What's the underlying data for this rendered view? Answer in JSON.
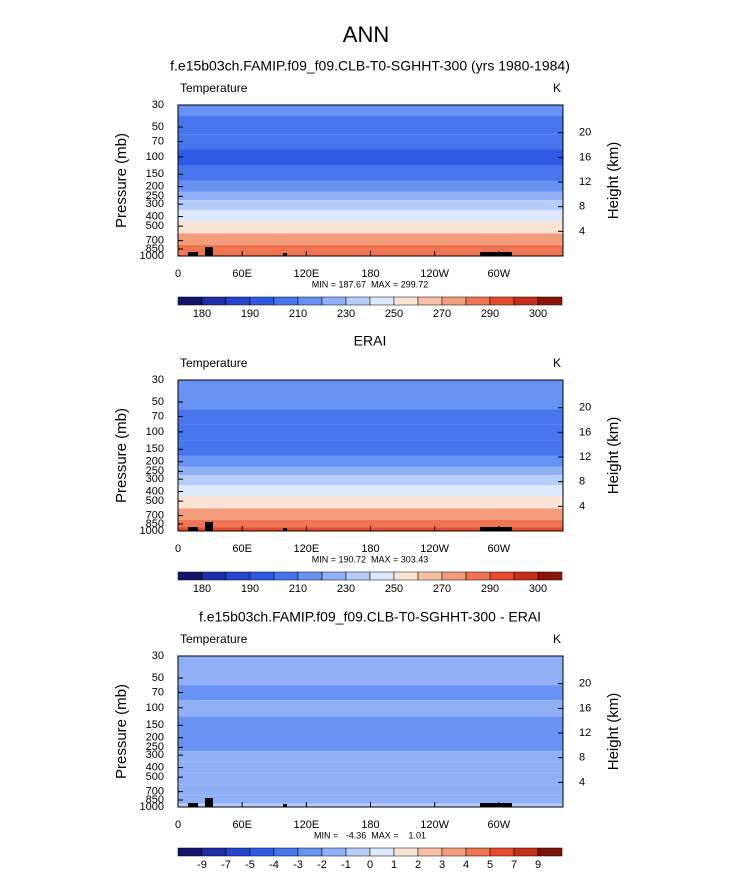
{
  "title": "ANN",
  "chart_data": [
    {
      "type": "contour",
      "title": "f.e15b03ch.FAMIP.f09_f09.CLB-T0-SGHHT-300 (yrs 1980-1984)",
      "subtitle": "Temperature",
      "units": "K",
      "ylabel": "Pressure (mb)",
      "y2label": "Height (km)",
      "stats": "MIN = 187.67  MAX = 299.72",
      "ylim": [
        1000,
        30
      ],
      "log_y": true,
      "yticks": [
        30,
        50,
        70,
        100,
        150,
        200,
        250,
        300,
        400,
        500,
        700,
        850,
        1000
      ],
      "y2lim": [
        0,
        24.5
      ],
      "y2ticks": [
        4,
        8,
        12,
        16,
        20
      ],
      "xlim": [
        0,
        360
      ],
      "xticks": [
        0,
        {
          "value": 60,
          "label": "60E"
        },
        {
          "value": 120,
          "label": "120E"
        },
        180,
        {
          "value": 240,
          "label": "120W"
        },
        {
          "value": 300,
          "label": "60W"
        }
      ],
      "y": [
        30,
        50,
        70,
        100,
        150,
        200,
        250,
        300,
        400,
        500,
        700,
        850,
        1000
      ],
      "values": [
        214,
        208,
        203,
        198,
        204,
        212,
        222,
        232,
        246,
        256,
        270,
        280,
        288
      ],
      "colorbar": {
        "labels": [
          180,
          null,
          190,
          null,
          210,
          null,
          230,
          null,
          250,
          null,
          270,
          null,
          290,
          null,
          300
        ],
        "colors": [
          "#14146e",
          "#1e2ea8",
          "#2646d0",
          "#2f5ae6",
          "#4675ee",
          "#6791f2",
          "#8fb0f6",
          "#b7cdf9",
          "#dde8fb",
          "#f9e3d4",
          "#f6c0a4",
          "#f29c7c",
          "#ee7452",
          "#e64c2a",
          "#c4301a",
          "#8c160c"
        ]
      }
    },
    {
      "type": "contour",
      "title": "ERAI",
      "subtitle": "Temperature",
      "units": "K",
      "ylabel": "Pressure (mb)",
      "y2label": "Height (km)",
      "stats": "MIN = 190.72  MAX = 303.43",
      "ylim": [
        1000,
        30
      ],
      "log_y": true,
      "yticks": [
        30,
        50,
        70,
        100,
        150,
        200,
        250,
        300,
        400,
        500,
        700,
        850,
        1000
      ],
      "y2lim": [
        0,
        24.5
      ],
      "y2ticks": [
        4,
        8,
        12,
        16,
        20
      ],
      "xlim": [
        0,
        360
      ],
      "xticks": [
        0,
        {
          "value": 60,
          "label": "60E"
        },
        {
          "value": 120,
          "label": "120E"
        },
        180,
        {
          "value": 240,
          "label": "120W"
        },
        {
          "value": 300,
          "label": "60W"
        }
      ],
      "y": [
        30,
        50,
        70,
        100,
        150,
        200,
        250,
        300,
        400,
        500,
        700,
        850,
        1000
      ],
      "values": [
        216,
        210,
        206,
        200,
        206,
        214,
        224,
        234,
        248,
        258,
        272,
        282,
        290
      ],
      "colorbar": {
        "labels": [
          180,
          null,
          190,
          null,
          210,
          null,
          230,
          null,
          250,
          null,
          270,
          null,
          290,
          null,
          300
        ],
        "colors": [
          "#14146e",
          "#1e2ea8",
          "#2646d0",
          "#2f5ae6",
          "#4675ee",
          "#6791f2",
          "#8fb0f6",
          "#b7cdf9",
          "#dde8fb",
          "#f9e3d4",
          "#f6c0a4",
          "#f29c7c",
          "#ee7452",
          "#e64c2a",
          "#c4301a",
          "#8c160c"
        ]
      }
    },
    {
      "type": "contour",
      "title": "f.e15b03ch.FAMIP.f09_f09.CLB-T0-SGHHT-300 - ERAI",
      "subtitle": "Temperature",
      "units": "K",
      "ylabel": "Pressure (mb)",
      "y2label": "Height (km)",
      "stats": "MIN =   -4.36  MAX =    1.01",
      "ylim": [
        1000,
        30
      ],
      "log_y": true,
      "yticks": [
        30,
        50,
        70,
        100,
        150,
        200,
        250,
        300,
        400,
        500,
        700,
        850,
        1000
      ],
      "y2lim": [
        0,
        24.5
      ],
      "y2ticks": [
        4,
        8,
        12,
        16,
        20
      ],
      "xlim": [
        0,
        360
      ],
      "xticks": [
        0,
        {
          "value": 60,
          "label": "60E"
        },
        {
          "value": 120,
          "label": "120E"
        },
        180,
        {
          "value": 240,
          "label": "120W"
        },
        {
          "value": 300,
          "label": "60W"
        }
      ],
      "y": [
        30,
        50,
        70,
        100,
        150,
        200,
        250,
        300,
        400,
        500,
        700,
        850,
        1000
      ],
      "values": [
        -1.5,
        -1.5,
        -2.5,
        -1.5,
        -2.5,
        -2.5,
        -2.5,
        -2,
        -2,
        -1.5,
        -1.5,
        -1.5,
        -0.5
      ],
      "colorbar": {
        "labels": [
          -9,
          -7,
          -5,
          -4,
          -3,
          -2,
          -1,
          0,
          1,
          2,
          3,
          4,
          5,
          7,
          9
        ],
        "colors": [
          "#14146e",
          "#1e2ea8",
          "#2646d0",
          "#2f5ae6",
          "#4675ee",
          "#6791f2",
          "#8fb0f6",
          "#b7cdf9",
          "#dde8fb",
          "#f9e3d4",
          "#f6c0a4",
          "#f29c7c",
          "#ee7452",
          "#e64c2a",
          "#c4301a",
          "#7a1208"
        ]
      }
    }
  ]
}
